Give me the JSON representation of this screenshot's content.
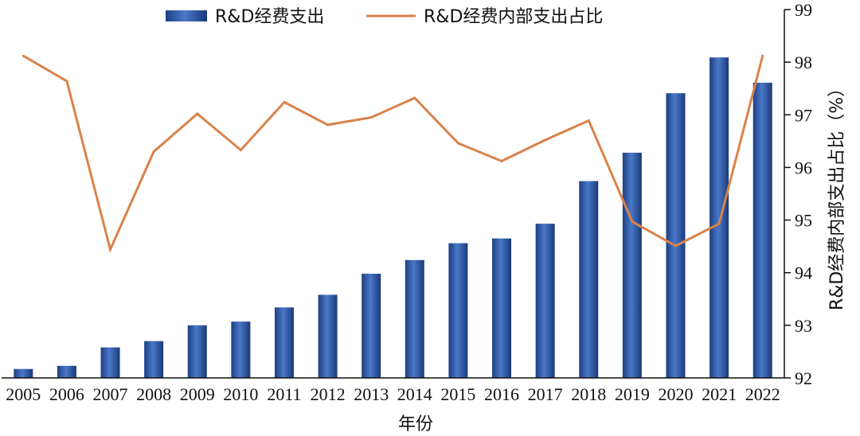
{
  "chart_data": {
    "type": "bar+line",
    "categories": [
      "2005",
      "2006",
      "2007",
      "2008",
      "2009",
      "2010",
      "2011",
      "2012",
      "2013",
      "2014",
      "2015",
      "2016",
      "2017",
      "2018",
      "2019",
      "2020",
      "2021",
      "2022"
    ],
    "series": [
      {
        "name": "R&D经费支出",
        "type": "bar",
        "color": "#2e5aa8",
        "values": [
          92.17,
          92.23,
          92.58,
          92.7,
          93.0,
          93.07,
          93.34,
          93.58,
          93.98,
          94.24,
          94.56,
          94.65,
          94.93,
          95.74,
          96.28,
          97.41,
          98.09,
          97.61
        ]
      },
      {
        "name": "R&D经费内部支出占比",
        "type": "line",
        "color": "#d9824a",
        "values": [
          98.12,
          97.64,
          94.44,
          96.3,
          97.02,
          96.33,
          97.24,
          96.81,
          96.95,
          97.32,
          96.46,
          96.12,
          96.52,
          96.89,
          94.97,
          94.51,
          94.93,
          98.12
        ]
      }
    ],
    "xlabel": "年份",
    "ylabel": "R&D经费内部支出占比（%）",
    "ylim": [
      92,
      99
    ],
    "yticks": [
      "92",
      "93",
      "94",
      "95",
      "96",
      "97",
      "98",
      "99"
    ],
    "y_axis_side": "right",
    "legend_position": "top",
    "grid": false
  }
}
